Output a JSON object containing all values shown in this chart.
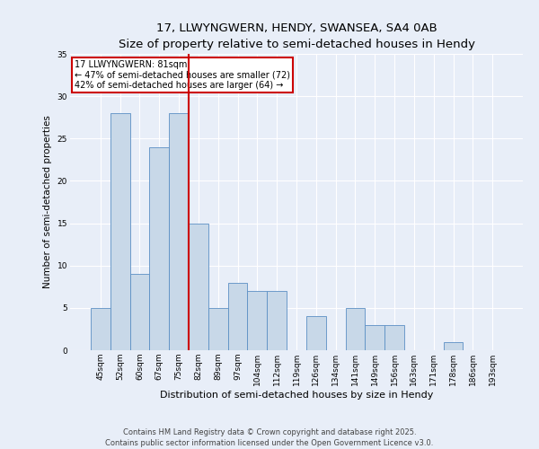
{
  "title": "17, LLWYNGWERN, HENDY, SWANSEA, SA4 0AB",
  "subtitle": "Size of property relative to semi-detached houses in Hendy",
  "xlabel": "Distribution of semi-detached houses by size in Hendy",
  "ylabel": "Number of semi-detached properties",
  "categories": [
    "45sqm",
    "52sqm",
    "60sqm",
    "67sqm",
    "75sqm",
    "82sqm",
    "89sqm",
    "97sqm",
    "104sqm",
    "112sqm",
    "119sqm",
    "126sqm",
    "134sqm",
    "141sqm",
    "149sqm",
    "156sqm",
    "163sqm",
    "171sqm",
    "178sqm",
    "186sqm",
    "193sqm"
  ],
  "values": [
    5,
    28,
    9,
    24,
    28,
    15,
    5,
    8,
    7,
    7,
    0,
    4,
    0,
    5,
    3,
    3,
    0,
    0,
    1,
    0,
    0
  ],
  "bar_color": "#c8d8e8",
  "bar_edge_color": "#5b8fc4",
  "vline_x_index": 5,
  "vline_color": "#cc0000",
  "annotation_title": "17 LLWYNGWERN: 81sqm",
  "annotation_line1": "← 47% of semi-detached houses are smaller (72)",
  "annotation_line2": "42% of semi-detached houses are larger (64) →",
  "annotation_box_color": "#cc0000",
  "ylim": [
    0,
    35
  ],
  "yticks": [
    0,
    5,
    10,
    15,
    20,
    25,
    30,
    35
  ],
  "footer_line1": "Contains HM Land Registry data © Crown copyright and database right 2025.",
  "footer_line2": "Contains public sector information licensed under the Open Government Licence v3.0.",
  "background_color": "#e8eef8",
  "plot_bg_color": "#e8eef8",
  "title_fontsize": 9.5,
  "subtitle_fontsize": 8.5,
  "xlabel_fontsize": 8,
  "ylabel_fontsize": 7.5,
  "tick_fontsize": 6.5,
  "annotation_fontsize": 7,
  "footer_fontsize": 6
}
